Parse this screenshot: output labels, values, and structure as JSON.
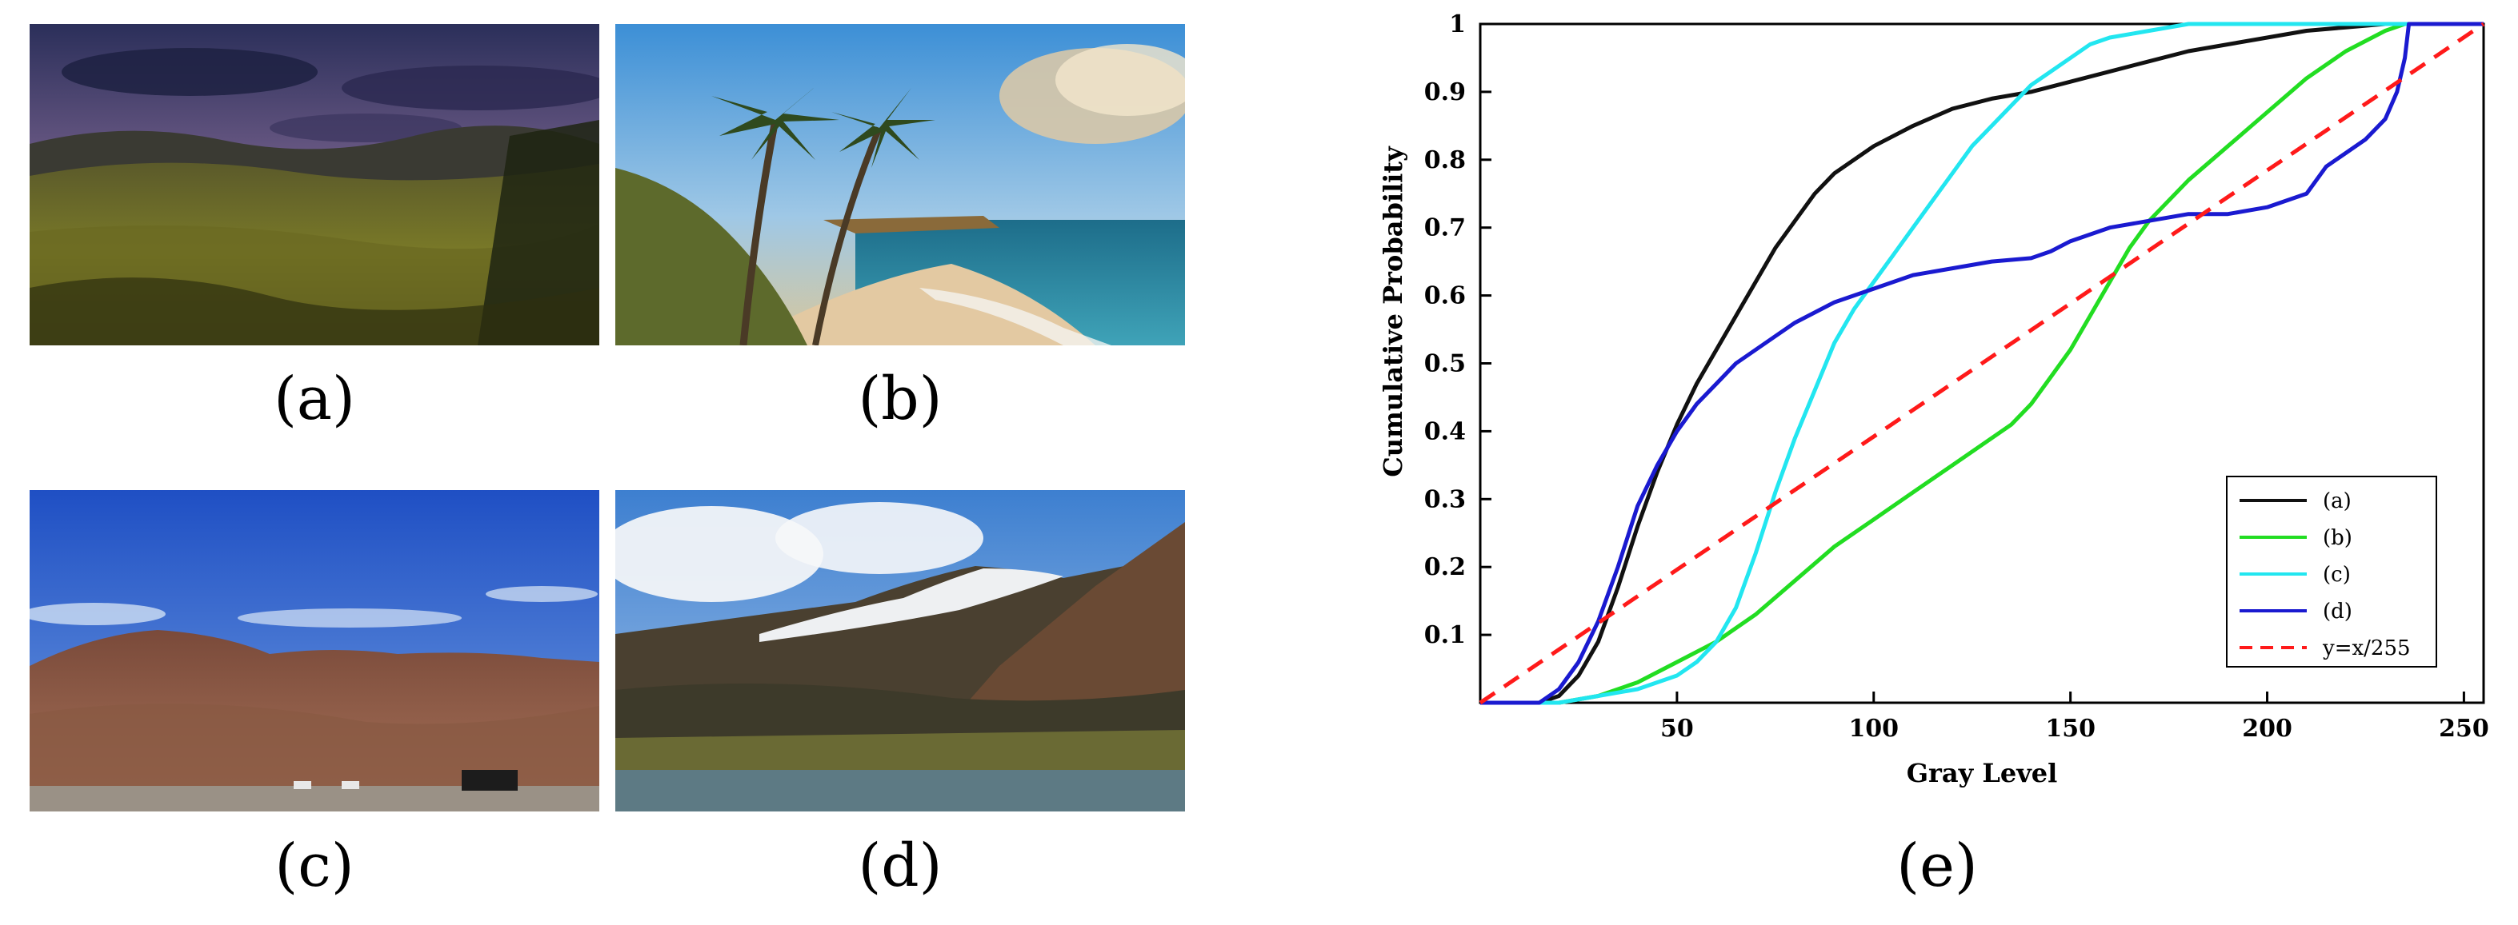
{
  "panels": {
    "a": {
      "label": "(a)"
    },
    "b": {
      "label": "(b)"
    },
    "c": {
      "label": "(c)"
    },
    "d": {
      "label": "(d)"
    },
    "e": {
      "label": "(e)"
    }
  },
  "colors": {
    "a": "#111111",
    "b": "#22dd22",
    "c": "#22e6f0",
    "d": "#1a1ad0",
    "ref": "#ff1a1a"
  },
  "chart_data": {
    "type": "line",
    "title": "",
    "xlabel": "Gray Level",
    "ylabel": "Cumulative Probability",
    "xlim": [
      0,
      255
    ],
    "ylim": [
      0,
      1
    ],
    "xticks": [
      50,
      100,
      150,
      200,
      250
    ],
    "yticks": [
      0.1,
      0.2,
      0.3,
      0.4,
      0.5,
      0.6,
      0.7,
      0.8,
      0.9,
      1
    ],
    "ytick_labels": [
      "0.1",
      "0.2",
      "0.3",
      "0.4",
      "0.5",
      "0.6",
      "0.7",
      "0.8",
      "0.9",
      "1"
    ],
    "grid": false,
    "legend_position": "bottom-right",
    "series": [
      {
        "name": "(a)",
        "color": "#111111",
        "x": [
          0,
          15,
          20,
          25,
          30,
          35,
          40,
          45,
          50,
          55,
          60,
          65,
          70,
          75,
          80,
          85,
          90,
          95,
          100,
          110,
          120,
          130,
          140,
          150,
          160,
          170,
          180,
          190,
          200,
          210,
          220,
          230,
          240,
          250,
          255
        ],
        "y": [
          0,
          0,
          0.01,
          0.04,
          0.09,
          0.17,
          0.26,
          0.34,
          0.41,
          0.47,
          0.52,
          0.57,
          0.62,
          0.67,
          0.71,
          0.75,
          0.78,
          0.8,
          0.82,
          0.85,
          0.875,
          0.89,
          0.9,
          0.915,
          0.93,
          0.945,
          0.96,
          0.97,
          0.98,
          0.99,
          0.995,
          1,
          1,
          1,
          1
        ]
      },
      {
        "name": "(b)",
        "color": "#22dd22",
        "x": [
          0,
          20,
          30,
          40,
          50,
          60,
          70,
          80,
          90,
          100,
          110,
          120,
          130,
          135,
          140,
          145,
          150,
          155,
          160,
          165,
          170,
          180,
          190,
          200,
          210,
          220,
          230,
          235,
          240,
          250,
          255
        ],
        "y": [
          0,
          0,
          0.01,
          0.03,
          0.06,
          0.09,
          0.13,
          0.18,
          0.23,
          0.27,
          0.31,
          0.35,
          0.39,
          0.41,
          0.44,
          0.48,
          0.52,
          0.57,
          0.62,
          0.67,
          0.71,
          0.77,
          0.82,
          0.87,
          0.92,
          0.96,
          0.99,
          1,
          1,
          1,
          1
        ]
      },
      {
        "name": "(c)",
        "color": "#22e6f0",
        "x": [
          0,
          20,
          30,
          40,
          50,
          55,
          60,
          65,
          70,
          75,
          80,
          85,
          90,
          95,
          100,
          105,
          110,
          115,
          120,
          125,
          130,
          135,
          140,
          145,
          150,
          155,
          160,
          170,
          180,
          190,
          200,
          210,
          220,
          230,
          240,
          250,
          255
        ],
        "y": [
          0,
          0,
          0.01,
          0.02,
          0.04,
          0.06,
          0.09,
          0.14,
          0.22,
          0.31,
          0.39,
          0.46,
          0.53,
          0.58,
          0.62,
          0.66,
          0.7,
          0.74,
          0.78,
          0.82,
          0.85,
          0.88,
          0.91,
          0.93,
          0.95,
          0.97,
          0.98,
          0.99,
          1,
          1,
          1,
          1,
          1,
          1,
          1,
          1,
          1
        ]
      },
      {
        "name": "(d)",
        "color": "#1a1ad0",
        "x": [
          0,
          15,
          20,
          25,
          30,
          35,
          40,
          45,
          50,
          55,
          60,
          65,
          70,
          75,
          80,
          90,
          100,
          110,
          120,
          130,
          140,
          145,
          150,
          160,
          170,
          180,
          190,
          200,
          210,
          215,
          220,
          225,
          230,
          233,
          235,
          236,
          240,
          250,
          255
        ],
        "y": [
          0,
          0,
          0.02,
          0.06,
          0.12,
          0.2,
          0.29,
          0.35,
          0.4,
          0.44,
          0.47,
          0.5,
          0.52,
          0.54,
          0.56,
          0.59,
          0.61,
          0.63,
          0.64,
          0.65,
          0.655,
          0.665,
          0.68,
          0.7,
          0.71,
          0.72,
          0.72,
          0.73,
          0.75,
          0.79,
          0.81,
          0.83,
          0.86,
          0.9,
          0.95,
          1,
          1,
          1,
          1
        ]
      },
      {
        "name": "y=x/255",
        "color": "#ff1a1a",
        "dashed": true,
        "x": [
          0,
          255
        ],
        "y": [
          0,
          1
        ]
      }
    ]
  }
}
